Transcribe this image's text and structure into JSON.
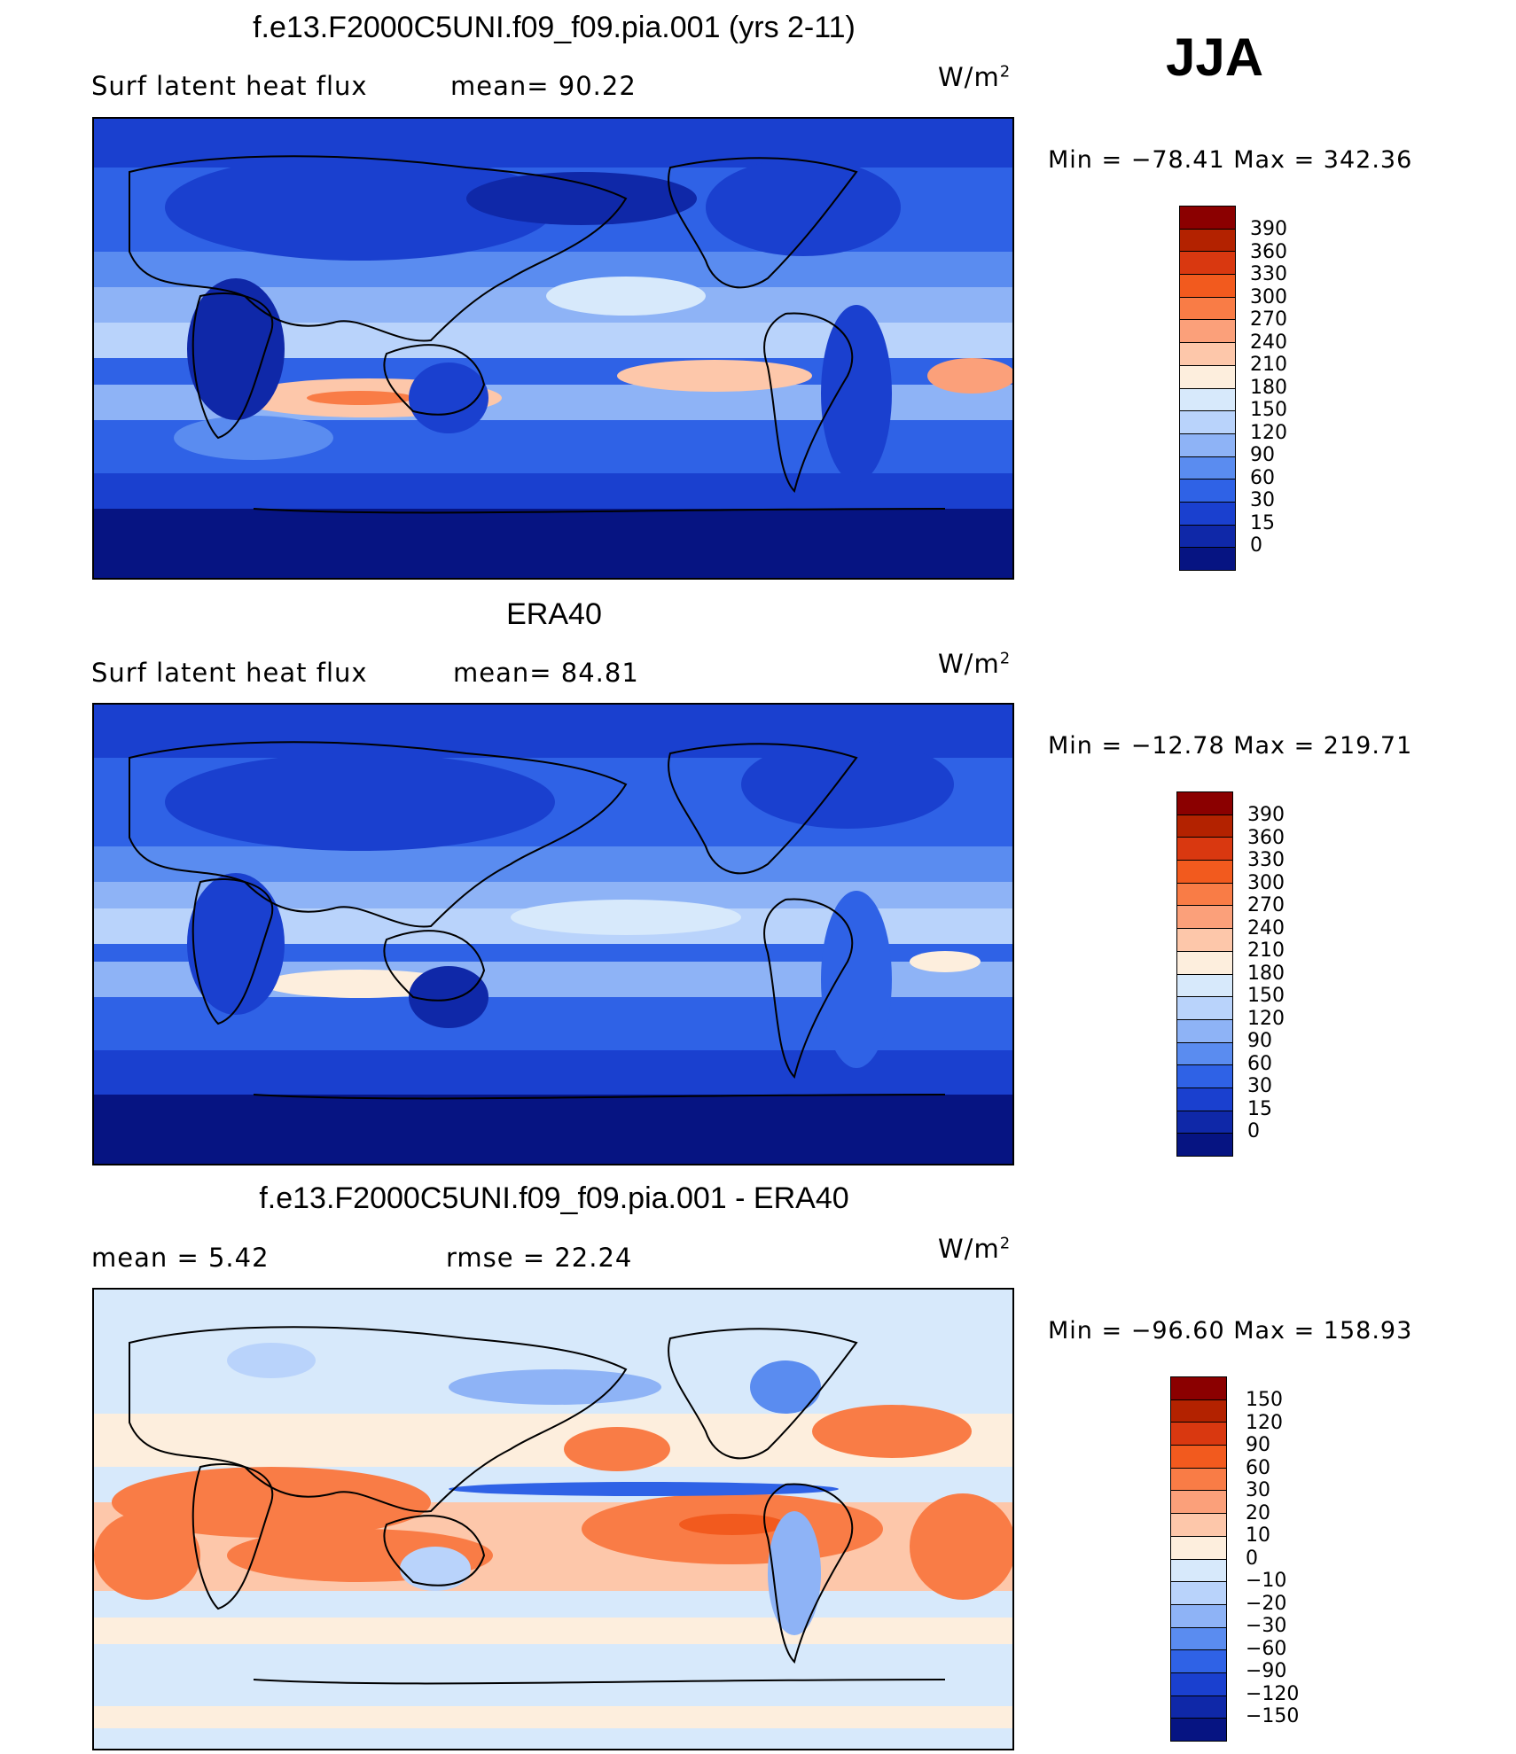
{
  "season": "JJA",
  "panels": [
    {
      "title": "f.e13.F2000C5UNI.f09_f09.pia.001 (yrs 2-11)",
      "left_text": "Surf  latent  heat  flux",
      "mid_text": "mean=   90.22",
      "units": "W/m",
      "units_sup": "2",
      "minmax": "Min  =  −78.41  Max  =  342.36",
      "levels": [
        "390",
        "360",
        "330",
        "300",
        "270",
        "240",
        "210",
        "180",
        "150",
        "120",
        "90",
        "60",
        "30",
        "15",
        "0"
      ],
      "colors": [
        "#8b0000",
        "#b32200",
        "#d93810",
        "#f25a1e",
        "#f97c46",
        "#fba07a",
        "#fdc7aa",
        "#fdeedd",
        "#d7e9fb",
        "#b9d3fb",
        "#8eb3f6",
        "#5a8cf0",
        "#2f62e6",
        "#1a40cf",
        "#0f28a8",
        "#061482"
      ]
    },
    {
      "title": "ERA40",
      "left_text": "Surf  latent  heat  flux",
      "mid_text": "mean=   84.81",
      "units": "W/m",
      "units_sup": "2",
      "minmax": "Min  =  −12.78  Max  =  219.71",
      "levels": [
        "390",
        "360",
        "330",
        "300",
        "270",
        "240",
        "210",
        "180",
        "150",
        "120",
        "90",
        "60",
        "30",
        "15",
        "0"
      ],
      "colors": [
        "#8b0000",
        "#b32200",
        "#d93810",
        "#f25a1e",
        "#f97c46",
        "#fba07a",
        "#fdc7aa",
        "#fdeedd",
        "#d7e9fb",
        "#b9d3fb",
        "#8eb3f6",
        "#5a8cf0",
        "#2f62e6",
        "#1a40cf",
        "#0f28a8",
        "#061482"
      ]
    },
    {
      "title": "f.e13.F2000C5UNI.f09_f09.pia.001 - ERA40",
      "left_text": "mean  =      5.42",
      "mid_text": "rmse  =    22.24",
      "units": "W/m",
      "units_sup": "2",
      "minmax": "Min  =  −96.60  Max  =  158.93",
      "levels": [
        "150",
        "120",
        "90",
        "60",
        "30",
        "20",
        "10",
        "0",
        "−10",
        "−20",
        "−30",
        "−60",
        "−90",
        "−120",
        "−150"
      ],
      "colors": [
        "#8b0000",
        "#b32200",
        "#d93810",
        "#f25a1e",
        "#f97c46",
        "#fba07a",
        "#fdc7aa",
        "#fdeedd",
        "#d7e9fb",
        "#b9d3fb",
        "#8eb3f6",
        "#5a8cf0",
        "#2f62e6",
        "#1a40cf",
        "#0f28a8",
        "#061482"
      ]
    }
  ]
}
